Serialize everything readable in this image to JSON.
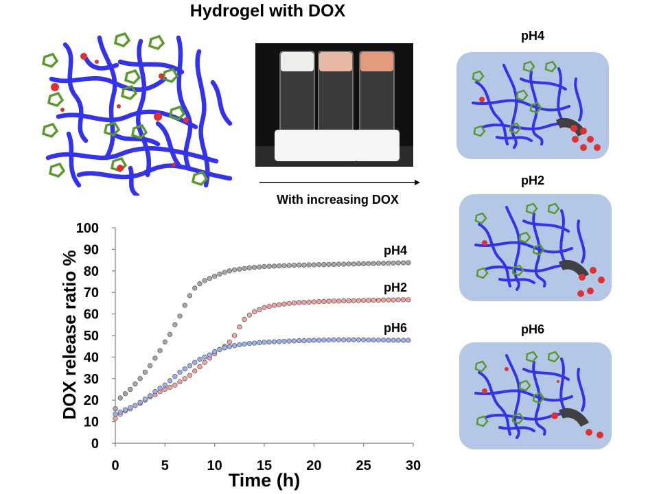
{
  "title": "Hydrogel with DOX",
  "arrow_label": "With increasing DOX",
  "panels": [
    {
      "label": "pH4"
    },
    {
      "label": "pH2"
    },
    {
      "label": "pH6"
    }
  ],
  "colors": {
    "polymer": "#3333ee",
    "drug": "#e03030",
    "linker": "#5a9a2a",
    "panel_bg": "#b4c7e7",
    "carrier": "#404040"
  },
  "photo": {
    "vials": [
      {
        "top_color": "#eeeeea"
      },
      {
        "top_color": "#e8b8a4"
      },
      {
        "top_color": "#e49a7c"
      }
    ]
  },
  "chart_data": {
    "type": "scatter",
    "xlabel": "Time (h)",
    "ylabel": "DOX release ratio %",
    "xlim": [
      0,
      30
    ],
    "ylim": [
      0,
      100
    ],
    "xticks": [
      0,
      5,
      10,
      15,
      20,
      25,
      30
    ],
    "yticks": [
      0,
      10,
      20,
      30,
      40,
      50,
      60,
      70,
      80,
      90,
      100
    ],
    "grid": false,
    "legend": "inline labels at right end of curves",
    "series": [
      {
        "name": "pH4",
        "color": "#a6a6a6",
        "x": [
          0,
          0.5,
          1,
          1.5,
          2,
          2.5,
          3,
          3.5,
          4,
          4.5,
          5,
          5.5,
          6,
          6.5,
          7,
          7.5,
          8,
          8.5,
          9,
          9.5,
          10,
          10.5,
          11,
          11.5,
          12,
          12.5,
          13,
          13.5,
          14,
          14.5,
          15,
          15.5,
          16,
          16.5,
          17,
          17.5,
          18,
          18.5,
          19,
          19.5,
          20,
          20.5,
          21,
          21.5,
          22,
          22.5,
          23,
          23.5,
          24,
          24.5,
          25,
          25.5,
          26,
          26.5,
          27,
          27.5,
          28,
          28.5,
          29,
          29.5
        ],
        "y": [
          16,
          21,
          23,
          25,
          27.5,
          30,
          33,
          36,
          39.5,
          43,
          47,
          50.5,
          55,
          59,
          64,
          68.5,
          72,
          74,
          75.5,
          76.5,
          77.5,
          78.5,
          79.3,
          80,
          80.5,
          80.8,
          81.1,
          81.4,
          81.6,
          81.8,
          82,
          82.1,
          82.2,
          82.3,
          82.4,
          82.5,
          82.6,
          82.7,
          82.7,
          82.8,
          82.8,
          82.9,
          82.9,
          83,
          83,
          83.1,
          83.1,
          83.2,
          83.2,
          83.3,
          83.3,
          83.4,
          83.4,
          83.5,
          83.5,
          83.6,
          83.6,
          83.7,
          83.7,
          83.8
        ]
      },
      {
        "name": "pH2",
        "color": "#f4a0a0",
        "x": [
          0,
          0.5,
          1,
          1.5,
          2,
          2.5,
          3,
          3.5,
          4,
          4.5,
          5,
          5.5,
          6,
          6.5,
          7,
          7.5,
          8,
          8.5,
          9,
          9.5,
          10,
          10.5,
          11,
          11.5,
          12,
          12.5,
          13,
          13.5,
          14,
          14.5,
          15,
          15.5,
          16,
          16.5,
          17,
          17.5,
          18,
          18.5,
          19,
          19.5,
          20,
          20.5,
          21,
          21.5,
          22,
          22.5,
          23,
          23.5,
          24,
          24.5,
          25,
          25.5,
          26,
          26.5,
          27,
          27.5,
          28,
          28.5,
          29,
          29.5
        ],
        "y": [
          11.5,
          13.5,
          15,
          16,
          17.5,
          18.5,
          20,
          21.5,
          22.5,
          24,
          25,
          26,
          27,
          28.5,
          30,
          31.5,
          33.5,
          35.5,
          37.5,
          39.5,
          41.5,
          43.5,
          45,
          47,
          50,
          54,
          57.5,
          59.5,
          61,
          62,
          63,
          63.5,
          64,
          64.3,
          64.6,
          64.9,
          65.1,
          65.3,
          65.4,
          65.5,
          65.6,
          65.7,
          65.8,
          65.9,
          66,
          66,
          66.1,
          66.1,
          66.2,
          66.2,
          66.3,
          66.3,
          66.4,
          66.4,
          66.5,
          66.5,
          66.5,
          66.6,
          66.6,
          66.6
        ]
      },
      {
        "name": "pH6",
        "color": "#9ab0f0",
        "x": [
          0,
          0.5,
          1,
          1.5,
          2,
          2.5,
          3,
          3.5,
          4,
          4.5,
          5,
          5.5,
          6,
          6.5,
          7,
          7.5,
          8,
          8.5,
          9,
          9.5,
          10,
          10.5,
          11,
          11.5,
          12,
          12.5,
          13,
          13.5,
          14,
          14.5,
          15,
          15.5,
          16,
          16.5,
          17,
          17.5,
          18,
          18.5,
          19,
          19.5,
          20,
          20.5,
          21,
          21.5,
          22,
          22.5,
          23,
          23.5,
          24,
          24.5,
          25,
          25.5,
          26,
          26.5,
          27,
          27.5,
          28,
          28.5,
          29,
          29.5
        ],
        "y": [
          13.5,
          14.5,
          15.5,
          16.5,
          17.5,
          19,
          20.5,
          22,
          24,
          25.5,
          27,
          29,
          31,
          33,
          34.5,
          36,
          37.5,
          39,
          40,
          41,
          42.5,
          43.5,
          44.3,
          44.8,
          45.3,
          45.7,
          46,
          46.3,
          46.5,
          46.7,
          46.9,
          47,
          47.1,
          47.2,
          47.3,
          47.4,
          47.5,
          47.6,
          47.6,
          47.7,
          47.8,
          47.8,
          47.9,
          47.9,
          48,
          48,
          48,
          48,
          48,
          48,
          48,
          47.9,
          47.9,
          47.9,
          47.9,
          47.8,
          47.8,
          47.8,
          47.8,
          47.8
        ]
      }
    ]
  }
}
